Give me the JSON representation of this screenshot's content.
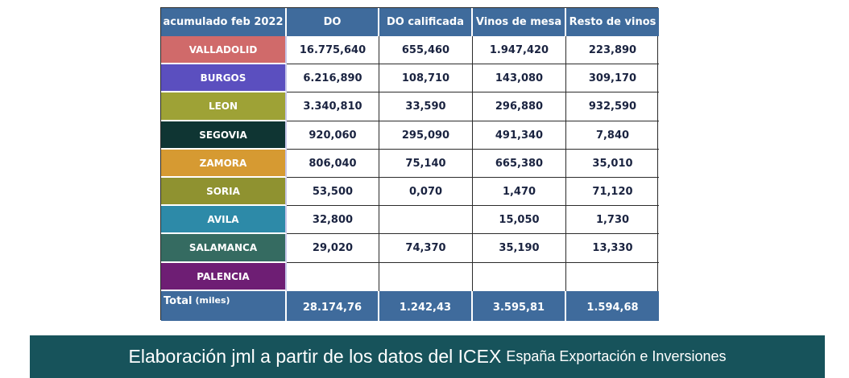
{
  "table": {
    "headers": [
      "acumulado feb 2022",
      "DO",
      "DO calificada",
      "Vinos de mesa",
      "Resto de vinos"
    ],
    "rows": [
      {
        "region": "VALLADOLID",
        "color": "#d06a6a",
        "do": "16.775,640",
        "do_calificada": "655,460",
        "vinos_mesa": "1.947,420",
        "resto": "223,890"
      },
      {
        "region": "BURGOS",
        "color": "#5b4fbf",
        "do": "6.216,890",
        "do_calificada": "108,710",
        "vinos_mesa": "143,080",
        "resto": "309,170"
      },
      {
        "region": "LEON",
        "color": "#9ea236",
        "do": "3.340,810",
        "do_calificada": "33,590",
        "vinos_mesa": "296,880",
        "resto": "932,590"
      },
      {
        "region": "SEGOVIA",
        "color": "#0f3533",
        "do": "920,060",
        "do_calificada": "295,090",
        "vinos_mesa": "491,340",
        "resto": "7,840"
      },
      {
        "region": "ZAMORA",
        "color": "#d69a32",
        "do": "806,040",
        "do_calificada": "75,140",
        "vinos_mesa": "665,380",
        "resto": "35,010"
      },
      {
        "region": "SORIA",
        "color": "#8f9230",
        "do": "53,500",
        "do_calificada": "0,070",
        "vinos_mesa": "1,470",
        "resto": "71,120"
      },
      {
        "region": "AVILA",
        "color": "#2d8aa8",
        "do": "32,800",
        "do_calificada": "",
        "vinos_mesa": "15,050",
        "resto": "1,730"
      },
      {
        "region": "SALAMANCA",
        "color": "#356b61",
        "do": "29,020",
        "do_calificada": "74,370",
        "vinos_mesa": "35,190",
        "resto": "13,330"
      },
      {
        "region": "PALENCIA",
        "color": "#6e1e74",
        "do": "",
        "do_calificada": "",
        "vinos_mesa": "",
        "resto": ""
      }
    ],
    "total": {
      "label": "Total",
      "unit": "(miles)",
      "do": "28.174,76",
      "do_calificada": "1.242,43",
      "vinos_mesa": "3.595,81",
      "resto": "1.594,68"
    }
  },
  "footer": {
    "main": "Elaboración jml a partir de los datos del ICEX",
    "sub": "España Exportación e Inversiones"
  },
  "colors": {
    "header_bg": "#3f6b9c",
    "footer_bg": "#17535b"
  }
}
